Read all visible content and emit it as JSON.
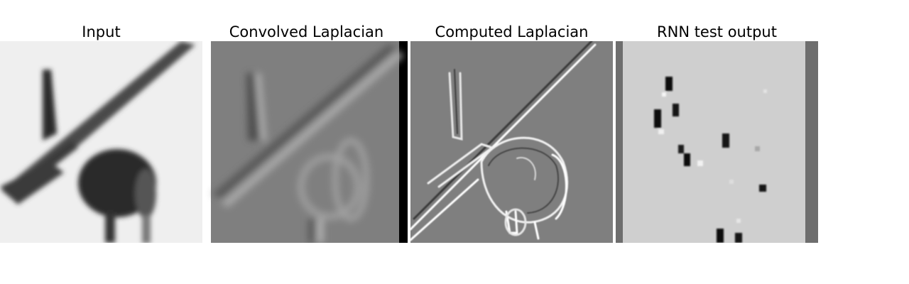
{
  "figure": {
    "panels": [
      {
        "title": "Input",
        "image": "blurred grayscale airplane on light background"
      },
      {
        "title": "Convolved Laplacian",
        "image": "smooth laplacian-filtered airplane on mid-gray"
      },
      {
        "title": "Computed Laplacian",
        "image": "sharp edge-detected airplane on mid-gray"
      },
      {
        "title": "RNN test output",
        "image": "sparse dark and light specks on light gray"
      }
    ]
  },
  "colors": {
    "background": "#ffffff",
    "input_bg": "#efefef",
    "laplacian_gray": "#7f7f7f",
    "rnn_bg": "#cfcfcf",
    "rnn_border": "#6e6e6e"
  }
}
